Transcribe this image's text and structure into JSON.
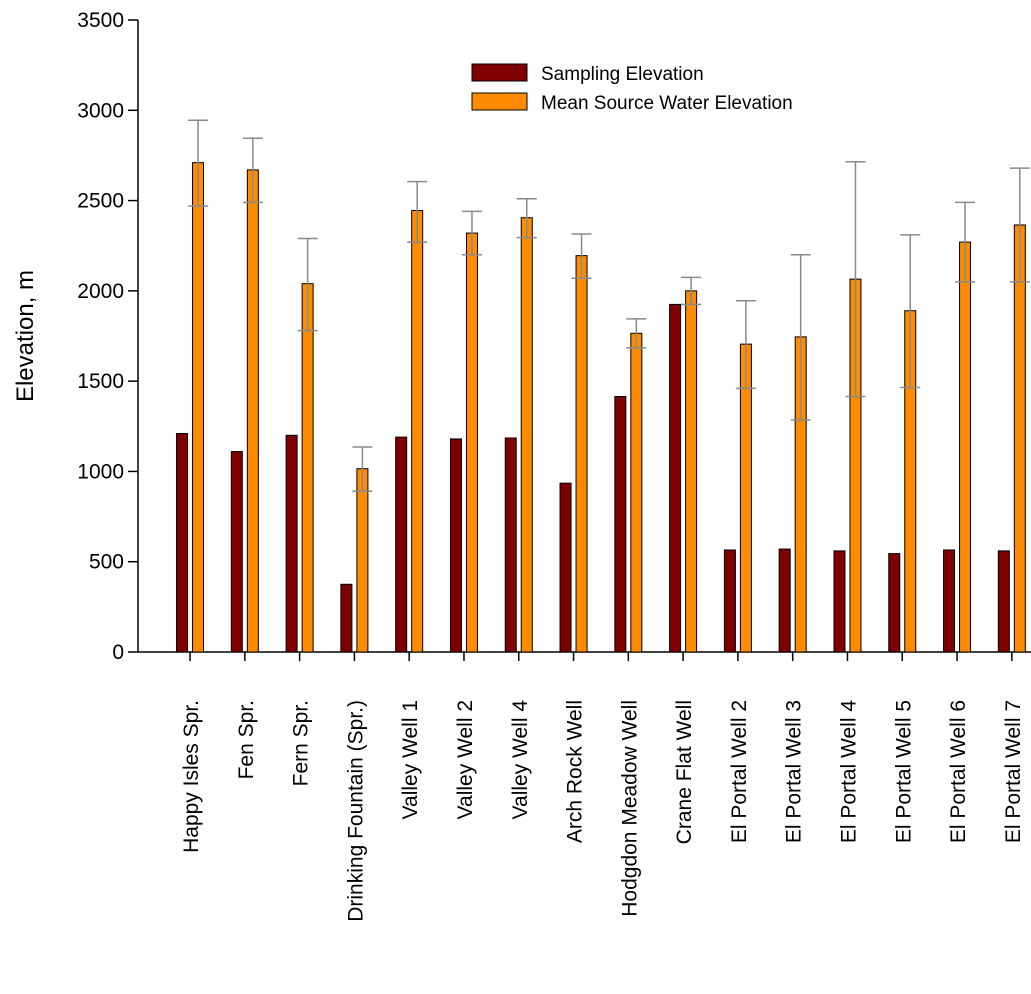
{
  "chart_data": {
    "type": "bar",
    "title": "",
    "xlabel": "",
    "ylabel": "Elevation, m",
    "ylim": [
      0,
      3500
    ],
    "yticks": [
      0,
      500,
      1000,
      1500,
      2000,
      2500,
      3000,
      3500
    ],
    "grid": false,
    "legend_position": "top-center",
    "categories": [
      "Happy Isles Spr.",
      "Fen Spr.",
      "Fern Spr.",
      "Drinking Fountain (Spr.)",
      "Valley Well 1",
      "Valley Well 2",
      "Valley Well 4",
      "Arch Rock Well",
      "Hodgdon Meadow Well",
      "Crane Flat Well",
      "El Portal Well 2",
      "El Portal Well 3",
      "El Portal Well 4",
      "El Portal Well 5",
      "El Portal Well 6",
      "El Portal Well 7"
    ],
    "series": [
      {
        "name": "Sampling Elevation",
        "color": "#7f0000",
        "values": [
          1210,
          1110,
          1200,
          375,
          1190,
          1180,
          1185,
          935,
          1415,
          1925,
          565,
          570,
          560,
          545,
          565,
          560
        ]
      },
      {
        "name": "Mean Source Water Elevation",
        "color": "#ff8c00",
        "values": [
          2710,
          2670,
          2040,
          1015,
          2445,
          2320,
          2405,
          2195,
          1765,
          2000,
          1705,
          1745,
          2065,
          1890,
          2270,
          2365
        ],
        "error_upper": [
          2945,
          2845,
          2290,
          1135,
          2605,
          2440,
          2510,
          2315,
          1845,
          2075,
          1945,
          2200,
          2715,
          2310,
          2490,
          2680
        ],
        "error_lower": [
          2470,
          2490,
          1780,
          890,
          2270,
          2200,
          2295,
          2070,
          1685,
          1925,
          1460,
          1285,
          1415,
          1465,
          2050,
          2050
        ]
      }
    ]
  }
}
